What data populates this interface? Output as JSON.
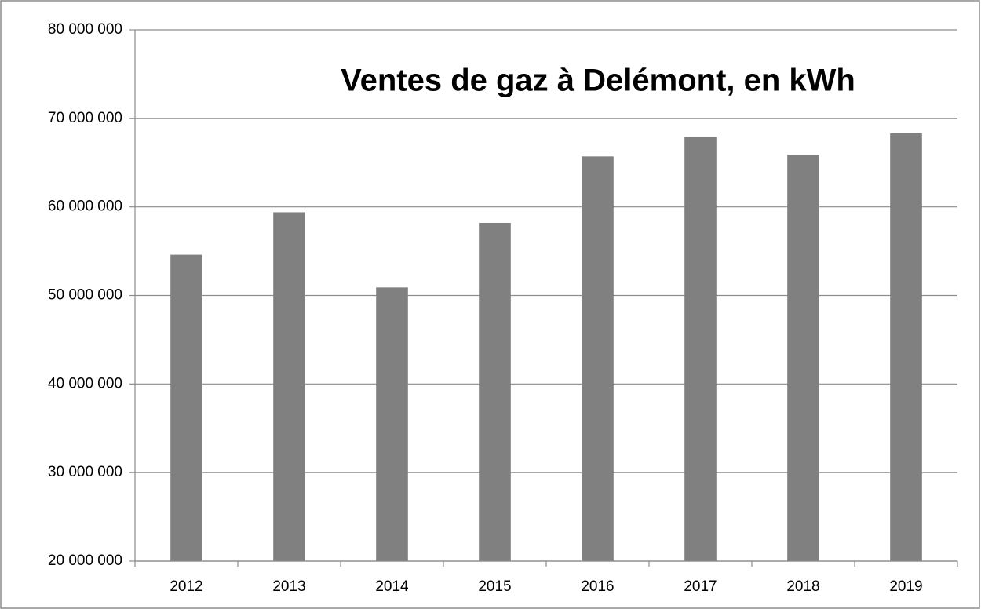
{
  "chart_data": {
    "type": "bar",
    "title": "Ventes de gaz à Delémont, en kWh",
    "categories": [
      "2012",
      "2013",
      "2014",
      "2015",
      "2016",
      "2017",
      "2018",
      "2019"
    ],
    "values": [
      54600000,
      59400000,
      50900000,
      58200000,
      65700000,
      67900000,
      65900000,
      68300000
    ],
    "color": "#808080",
    "ylim": [
      20000000,
      80000000
    ],
    "yticks": [
      {
        "value": 20000000,
        "label": "20 000 000"
      },
      {
        "value": 30000000,
        "label": "30 000 000"
      },
      {
        "value": 40000000,
        "label": "40 000 000"
      },
      {
        "value": 50000000,
        "label": "50 000 000"
      },
      {
        "value": 60000000,
        "label": "60 000 000"
      },
      {
        "value": 70000000,
        "label": "70 000 000"
      },
      {
        "value": 80000000,
        "label": "80 000 000"
      }
    ],
    "grid": true
  }
}
